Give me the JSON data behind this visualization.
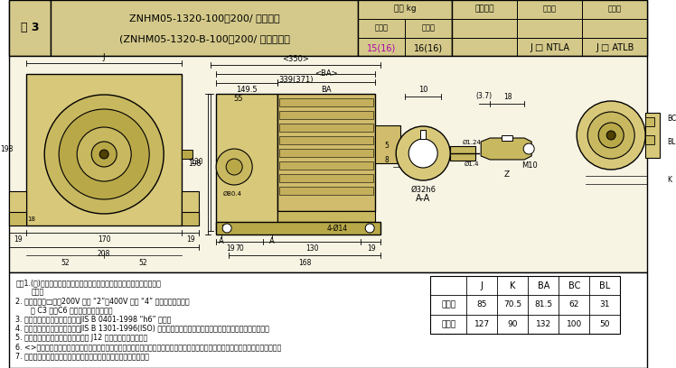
{
  "title_line1": "ZNHM05-1320-100〜200/ 仕様記号",
  "title_line2": "(ZNHM05-1320-B-100〜200/ 仕様記号）",
  "fig_label": "図 3",
  "header_bg": "#d4c98a",
  "white": "#ffffff",
  "black": "#000000",
  "light_bg": "#f0e8c0",
  "table_header": "質量 kg",
  "indoor_label": "屋内形",
  "outdoor_label": "屋外形",
  "spec_label": "仕様記号",
  "mass_indoor": "15(16)",
  "mass_outdoor": "16(16)",
  "spec_indoor": "J □ NTLA",
  "spec_outdoor": "J □ ATLB",
  "note1a": "注）1.(　)内はブレーキ付の形式、尸法、質量を示しますのでご注意くだ",
  "note1b": "さい。",
  "note2a": "2. 仕様記号の□は、200V 級は “2”、400V 級は “4” が入ります。詳細",
  "note2b": "は C3 頁、C6 頁をご参照ください。",
  "note3": "3. 出力軸径尸法：尸法公差は、JIS B 0401-1998 “h6” です。",
  "note4": "4. 軸端キー尸法：尸法公差は、JIS B 1301-1996(ISO) キー及びキー溝　平行キー（普通形）に準拠しています。",
  "note5": "5. 出力軸部の詳細尸法は、技術資料 J12 頁をご参照ください。",
  "note6": "6. <>内は屋外形・ブレーキ無仕様での尸法を示します。まその際、端子箔電線管がモータ端より出っ張りますのでご注意ください。",
  "note7": "7. 本尸図の尸法及び質量は、予告なしに変更することが有ります。",
  "dim_table_headers": [
    "",
    "J",
    "K",
    "BA",
    "BC",
    "BL"
  ],
  "dim_table_row1": [
    "屋内形",
    "85",
    "70.5",
    "81.5",
    "62",
    "31"
  ],
  "dim_table_row2": [
    "屋外形",
    "127",
    "90",
    "132",
    "100",
    "50"
  ],
  "gear_color": "#d8c87a",
  "gear_color2": "#c8b860",
  "gear_color3": "#b8a848",
  "motor_color": "#d0bc6c",
  "motor_rib": "#c4b05c",
  "dark_brown": "#504000"
}
